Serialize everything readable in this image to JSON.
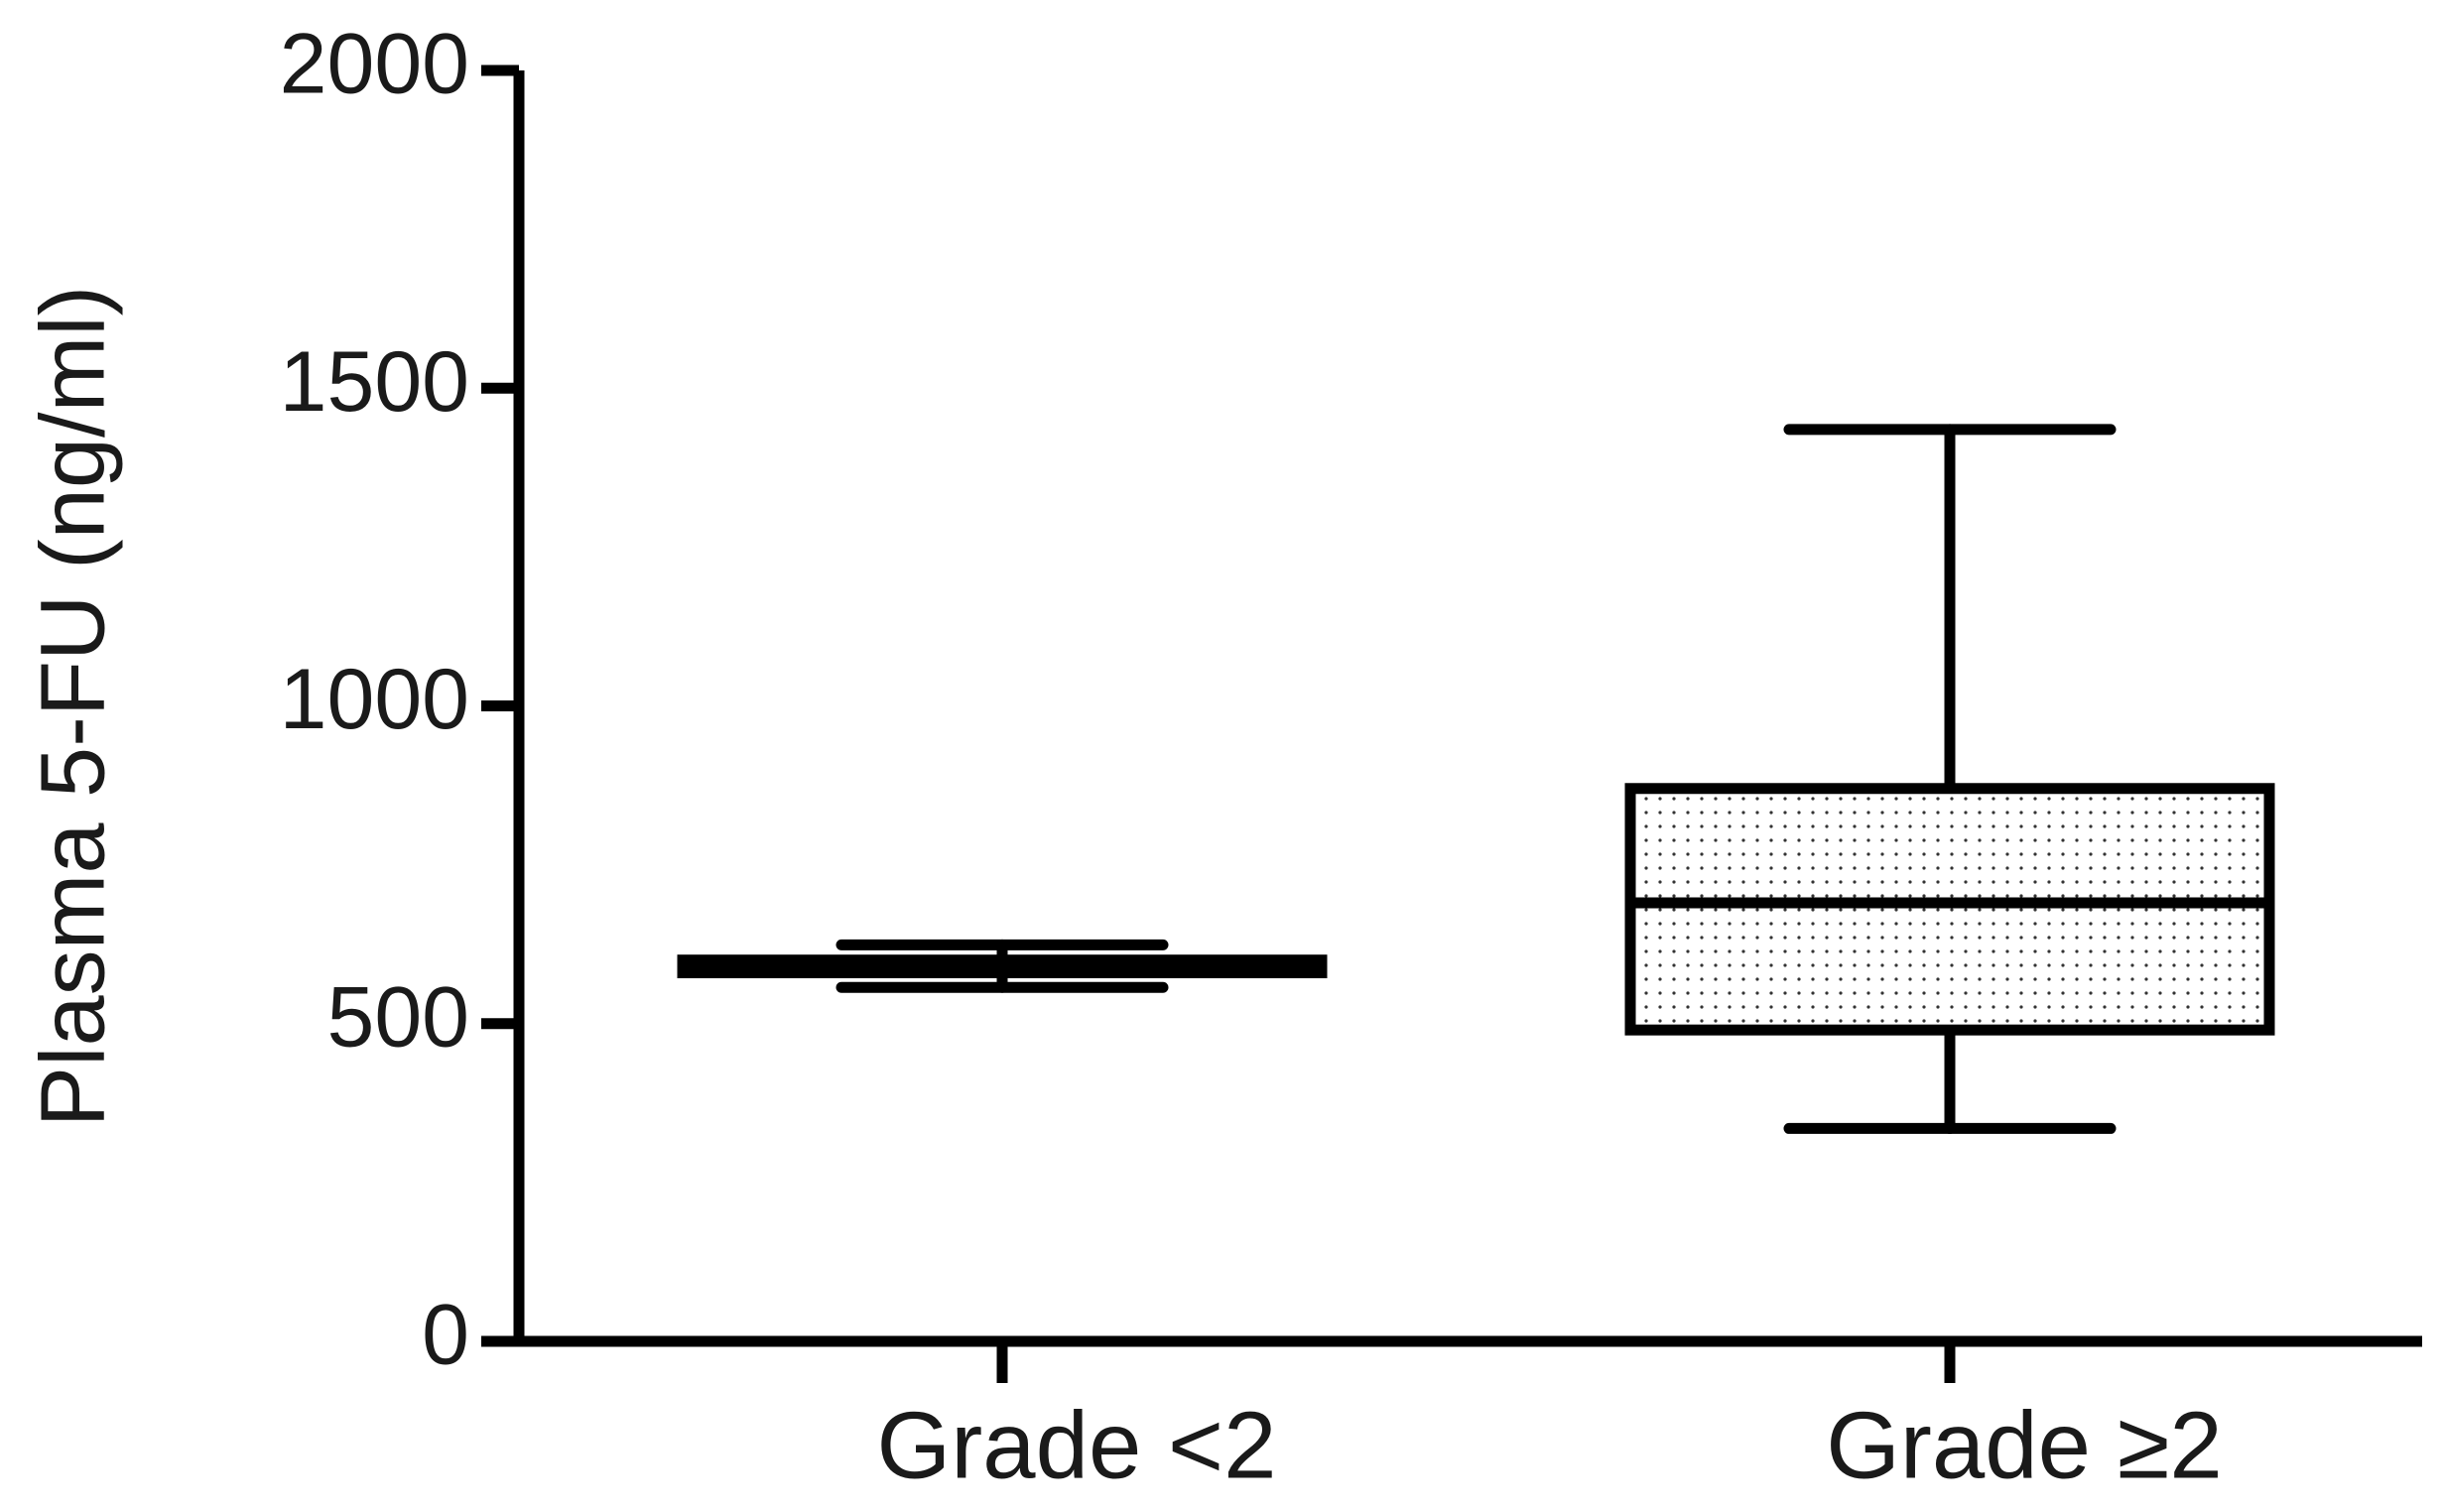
{
  "chart_data": {
    "type": "box",
    "y_label": "Plasma 5-FU (ng/ml)",
    "categories": [
      "Grade <2",
      "Grade ≥2"
    ],
    "boxes": [
      {
        "min": 557,
        "q1": 580,
        "median": 589,
        "q3": 600,
        "max": 624
      },
      {
        "min": 335,
        "q1": 490,
        "median": 690,
        "q3": 870,
        "max": 1435
      }
    ],
    "color": "#000000",
    "ylim": [
      0,
      2000
    ],
    "yticks": [
      0,
      500,
      1000,
      1500,
      2000
    ]
  }
}
